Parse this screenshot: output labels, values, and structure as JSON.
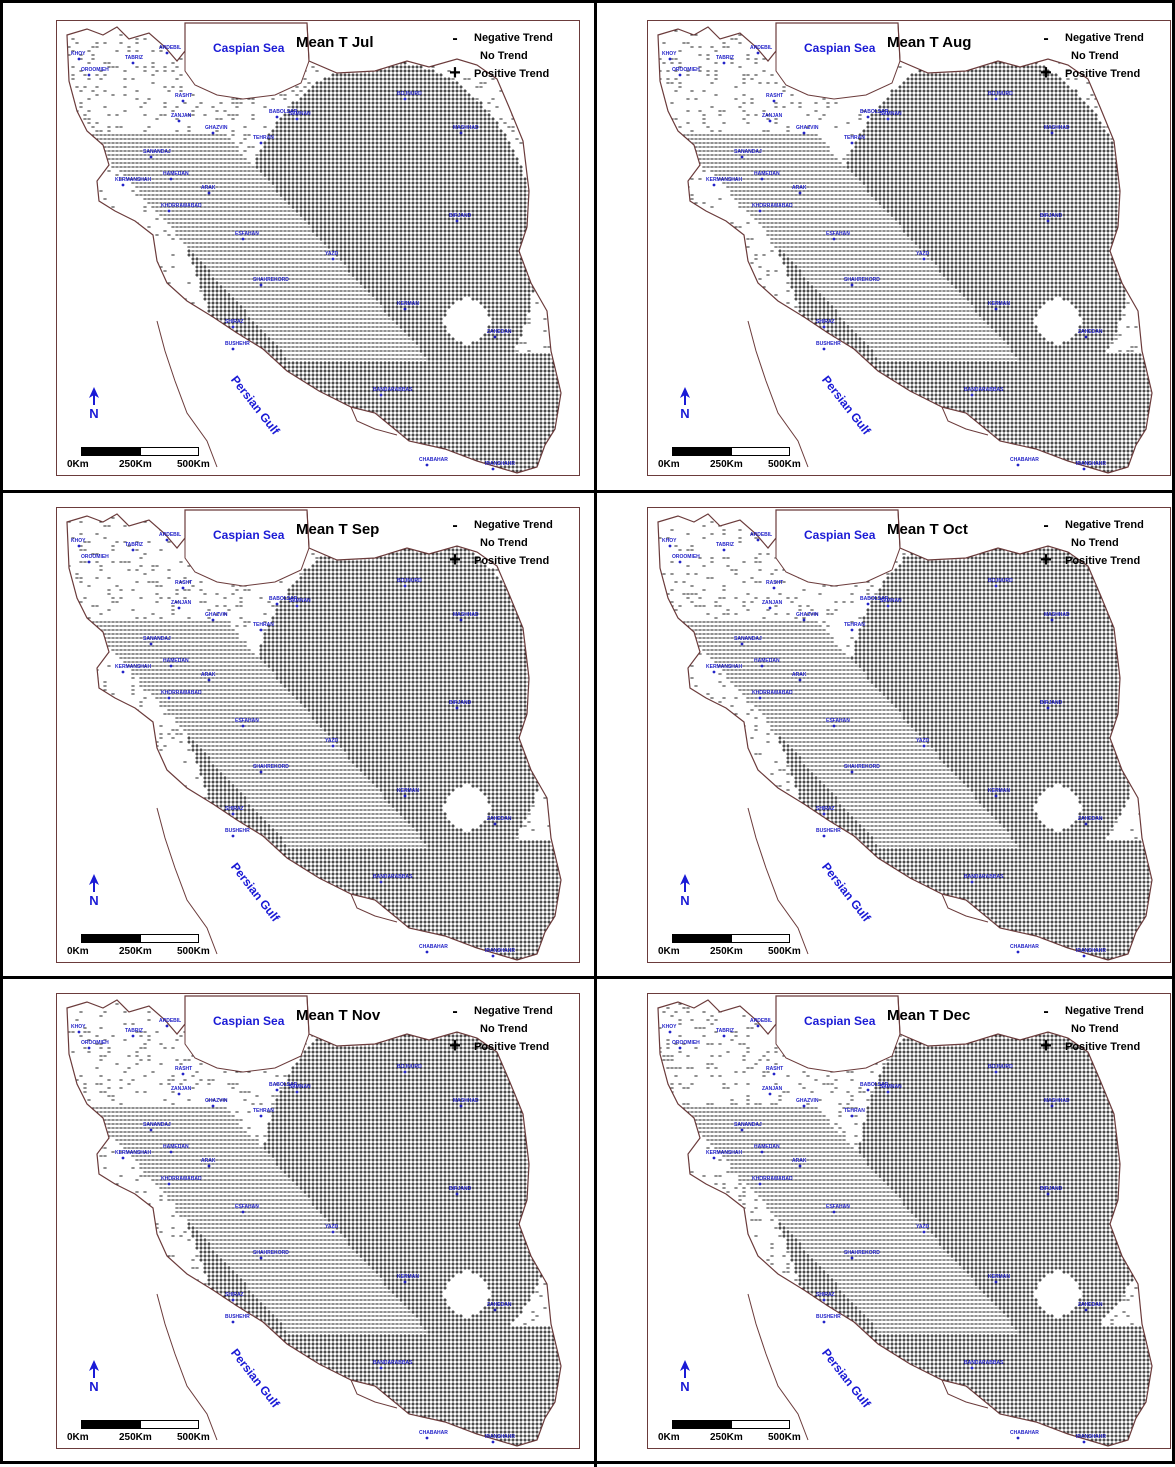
{
  "legend": {
    "negative_symbol": "-",
    "negative_label": "Negative Trend",
    "none_label": "No Trend",
    "positive_symbol": "+",
    "positive_label": "Positive Trend"
  },
  "labels": {
    "caspian": "Caspian Sea",
    "gulf": "Persian Gulf",
    "north": "N"
  },
  "scale": {
    "zero": "0Km",
    "mid": "250Km",
    "max": "500Km"
  },
  "colors": {
    "positive": "#111111",
    "negative": "#222222",
    "border": "#6b3b3b",
    "label_blue": "#1a1ad6"
  },
  "panels": [
    {
      "title": "Mean T Jul",
      "cities": [
        "KHOY",
        "TABRIZ",
        "ARDEBIL",
        "OROOMIEH",
        "RASHT",
        "ZANJAN",
        "BABOLSAR",
        "GHAZVIN",
        "TEHRAN",
        "SEMNAN",
        "BOJNURD",
        "MASHHAD",
        "SANANDAJ",
        "HAMEDAN",
        "KERMANSHAH",
        "ARAK",
        "KHORRAMABAD",
        "ESFAHAN",
        "BIRJAND",
        "YAZD",
        "SHAHREKORD",
        "KERMAN",
        "SHIRAZ",
        "ZAHEDAN",
        "BUSHEHR",
        "BANDARABBAS",
        "CHABAHAR",
        "IRANSHAHR"
      ]
    },
    {
      "title": "Mean T Aug",
      "cities": [
        "KHOY",
        "TABRIZ",
        "ARDEBIL",
        "OROOMIEH",
        "RASHT",
        "ZANJAN",
        "BABOLSAR",
        "GHAZVIN",
        "TEHRAN",
        "SEMNAN",
        "BOJNURD",
        "MASHHAD",
        "SANANDAJ",
        "HAMEDAN",
        "KERMANSHAH",
        "ARAK",
        "KHORRAMABAD",
        "ESFAHAN",
        "BIRJAND",
        "YAZD",
        "SHAHREKORD",
        "KERMAN",
        "SHIRAZ",
        "ZAHEDAN",
        "BUSHEHR",
        "BANDARABBAS",
        "CHABAHAR",
        "IRANSHAHR"
      ]
    },
    {
      "title": "Mean T Sep",
      "cities": [
        "KHOY",
        "TABRIZ",
        "ARDEBIL",
        "OROOMIEH",
        "RASHT",
        "ZANJAN",
        "BABOLSAR",
        "GHAZVIN",
        "TEHRAN",
        "SEMNAN",
        "BOJNURD",
        "MASHHAD",
        "SANANDAJ",
        "HAMEDAN",
        "KERMANSHAH",
        "ARAK",
        "KHORRAMABAD",
        "ESFAHAN",
        "BIRJAND",
        "YAZD",
        "SHAHREKORD",
        "KERMAN",
        "SHIRAZ",
        "ZAHEDAN",
        "BUSHEHR",
        "BANDARABBAS",
        "CHABAHAR",
        "IRANSHAHR"
      ]
    },
    {
      "title": "Mean T Oct",
      "cities": [
        "KHOY",
        "TABRIZ",
        "ARDEBIL",
        "OROOMIEH",
        "RASHT",
        "ZANJAN",
        "BABOLSAR",
        "GHAZVIN",
        "TEHRAN",
        "SEMNAN",
        "BOJNURD",
        "MASHHAD",
        "SANANDAJ",
        "HAMEDAN",
        "KERMANSHAH",
        "ARAK",
        "KHORRAMABAD",
        "ESFAHAN",
        "BIRJAND",
        "YAZD",
        "SHAHREKORD",
        "KERMAN",
        "SHIRAZ",
        "ZAHEDAN",
        "BUSHEHR",
        "BANDARABBAS",
        "CHABAHAR",
        "IRANSHAHR"
      ]
    },
    {
      "title": "Mean T Nov",
      "cities": [
        "KHOY",
        "TABRIZ",
        "ARDEBIL",
        "OROOMIEH",
        "RASHT",
        "ZANJAN",
        "BABOLSAR",
        "GHAZVIN",
        "TEHRAN",
        "SEMNAN",
        "BOJNURD",
        "MASHHAD",
        "SANANDAJ",
        "HAMEDAN",
        "KERMANSHAH",
        "ARAK",
        "KHORRAMABAD",
        "ESFAHAN",
        "BIRJAND",
        "YAZD",
        "SHAHREKORD",
        "KERMAN",
        "SHIRAZ",
        "ZAHEDAN",
        "BUSHEHR",
        "BANDARABBAS",
        "CHABAHAR",
        "IRANSHAHR"
      ]
    },
    {
      "title": "Mean T Dec",
      "cities": [
        "KHOY",
        "TABRIZ",
        "ARDEBIL",
        "OROOMIEH",
        "RASHT",
        "ZANJAN",
        "BABOLSAR",
        "GHAZVIN",
        "TEHRAN",
        "SEMNAN",
        "BOJNURD",
        "MASHHAD",
        "SANANDAJ",
        "HAMEDAN",
        "KERMANSHAH",
        "ARAK",
        "KHORRAMABAD",
        "ESFAHAN",
        "BIRJAND",
        "YAZD",
        "SHAHREKORD",
        "KERMAN",
        "SHIRAZ",
        "ZAHEDAN",
        "BUSHEHR",
        "BANDARABBAS",
        "CHABAHAR",
        "IRANSHAHR"
      ]
    }
  ]
}
